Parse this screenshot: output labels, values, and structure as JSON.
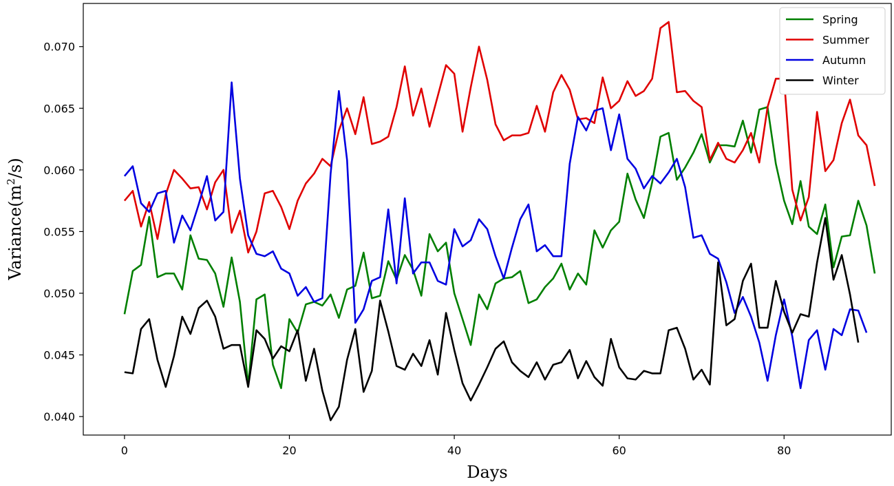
{
  "chart_data": {
    "type": "line",
    "xlabel": "Days",
    "ylabel_prefix": "Variance(m",
    "ylabel_sup": "2",
    "ylabel_suffix": "/s)",
    "xlim": [
      -5,
      93
    ],
    "ylim": [
      0.0385,
      0.0735
    ],
    "xticks": [
      0,
      20,
      40,
      60,
      80
    ],
    "xtick_labels": [
      "0",
      "20",
      "40",
      "60",
      "80"
    ],
    "yticks": [
      0.04,
      0.045,
      0.05,
      0.055,
      0.06,
      0.065,
      0.07
    ],
    "ytick_labels": [
      "0.040",
      "0.045",
      "0.050",
      "0.055",
      "0.060",
      "0.065",
      "0.070"
    ],
    "grid": false,
    "legend_position": "top-right",
    "series": [
      {
        "name": "Spring",
        "color": "#007f00",
        "y": [
          0.0483,
          0.0518,
          0.0523,
          0.0562,
          0.0513,
          0.0516,
          0.0516,
          0.0503,
          0.0547,
          0.0528,
          0.0527,
          0.0516,
          0.0489,
          0.0529,
          0.0493,
          0.0425,
          0.0495,
          0.0499,
          0.0442,
          0.0423,
          0.0479,
          0.0468,
          0.0491,
          0.0493,
          0.049,
          0.0499,
          0.048,
          0.0503,
          0.0506,
          0.0533,
          0.0496,
          0.0498,
          0.0526,
          0.0511,
          0.0531,
          0.0519,
          0.0498,
          0.0548,
          0.0534,
          0.0541,
          0.05,
          0.0479,
          0.0458,
          0.0499,
          0.0487,
          0.0508,
          0.0512,
          0.0513,
          0.0518,
          0.0492,
          0.0495,
          0.0505,
          0.0512,
          0.0524,
          0.0503,
          0.0516,
          0.0507,
          0.0551,
          0.0537,
          0.0551,
          0.0558,
          0.0597,
          0.0576,
          0.0561,
          0.059,
          0.0627,
          0.063,
          0.0592,
          0.0602,
          0.0614,
          0.0629,
          0.0606,
          0.062,
          0.062,
          0.0619,
          0.064,
          0.0614,
          0.0649,
          0.0651,
          0.0605,
          0.0575,
          0.0556,
          0.0591,
          0.0554,
          0.0548,
          0.0572,
          0.0521,
          0.0546,
          0.0547,
          0.0575,
          0.0555,
          0.0516
        ]
      },
      {
        "name": "Summer",
        "color": "#e00000",
        "y": [
          0.0575,
          0.0583,
          0.0554,
          0.0574,
          0.0544,
          0.058,
          0.06,
          0.0593,
          0.0585,
          0.0586,
          0.0568,
          0.059,
          0.06,
          0.0549,
          0.0567,
          0.0533,
          0.055,
          0.0581,
          0.0583,
          0.057,
          0.0552,
          0.0575,
          0.0589,
          0.0597,
          0.0609,
          0.0603,
          0.0632,
          0.065,
          0.0629,
          0.0659,
          0.0621,
          0.0623,
          0.0627,
          0.0651,
          0.0684,
          0.0644,
          0.0666,
          0.0635,
          0.066,
          0.0685,
          0.0678,
          0.0631,
          0.0667,
          0.07,
          0.0673,
          0.0637,
          0.0624,
          0.0628,
          0.0628,
          0.063,
          0.0652,
          0.0631,
          0.0663,
          0.0677,
          0.0665,
          0.0641,
          0.0642,
          0.0638,
          0.0675,
          0.065,
          0.0656,
          0.0672,
          0.066,
          0.0664,
          0.0674,
          0.0715,
          0.072,
          0.0663,
          0.0664,
          0.0656,
          0.0651,
          0.0608,
          0.0622,
          0.0609,
          0.0606,
          0.0616,
          0.063,
          0.0606,
          0.0651,
          0.0674,
          0.0674,
          0.0584,
          0.0559,
          0.0578,
          0.0647,
          0.0599,
          0.0608,
          0.0638,
          0.0657,
          0.0628,
          0.062,
          0.0587
        ]
      },
      {
        "name": "Autumn",
        "color": "#0000e0",
        "y": [
          0.0595,
          0.0603,
          0.0573,
          0.0566,
          0.0581,
          0.0583,
          0.0541,
          0.0563,
          0.0551,
          0.0572,
          0.0595,
          0.0559,
          0.0566,
          0.0671,
          0.0593,
          0.0547,
          0.0532,
          0.053,
          0.0534,
          0.052,
          0.0516,
          0.0498,
          0.0505,
          0.0493,
          0.0496,
          0.0597,
          0.0664,
          0.0608,
          0.0476,
          0.0487,
          0.051,
          0.0513,
          0.0568,
          0.0508,
          0.0577,
          0.0516,
          0.0525,
          0.0525,
          0.051,
          0.0507,
          0.0552,
          0.0538,
          0.0543,
          0.056,
          0.0552,
          0.053,
          0.0512,
          0.0537,
          0.056,
          0.0572,
          0.0534,
          0.0539,
          0.053,
          0.053,
          0.0605,
          0.0643,
          0.0632,
          0.0648,
          0.065,
          0.0616,
          0.0645,
          0.0609,
          0.0601,
          0.0585,
          0.0595,
          0.0589,
          0.0598,
          0.0609,
          0.0586,
          0.0545,
          0.0547,
          0.0532,
          0.0528,
          0.0509,
          0.0484,
          0.0497,
          0.0481,
          0.046,
          0.0429,
          0.0466,
          0.0495,
          0.0465,
          0.0423,
          0.0462,
          0.047,
          0.0438,
          0.0471,
          0.0466,
          0.0487,
          0.0486,
          0.0468
        ]
      },
      {
        "name": "Winter",
        "color": "#000000",
        "y": [
          0.0436,
          0.0435,
          0.0471,
          0.0479,
          0.0446,
          0.0424,
          0.0449,
          0.0481,
          0.0467,
          0.0488,
          0.0494,
          0.0481,
          0.0455,
          0.0458,
          0.0458,
          0.0424,
          0.047,
          0.0463,
          0.0447,
          0.0457,
          0.0453,
          0.047,
          0.0429,
          0.0455,
          0.0421,
          0.0397,
          0.0408,
          0.0446,
          0.0471,
          0.042,
          0.0437,
          0.0494,
          0.0469,
          0.0441,
          0.0438,
          0.0451,
          0.0441,
          0.0462,
          0.0434,
          0.0484,
          0.0454,
          0.0427,
          0.0413,
          0.0426,
          0.044,
          0.0455,
          0.0461,
          0.0444,
          0.0437,
          0.0432,
          0.0444,
          0.043,
          0.0442,
          0.0444,
          0.0454,
          0.0431,
          0.0445,
          0.0432,
          0.0425,
          0.0463,
          0.044,
          0.0431,
          0.043,
          0.0437,
          0.0435,
          0.0435,
          0.047,
          0.0472,
          0.0455,
          0.043,
          0.0438,
          0.0426,
          0.0525,
          0.0474,
          0.0479,
          0.051,
          0.0524,
          0.0472,
          0.0472,
          0.051,
          0.0485,
          0.0468,
          0.0483,
          0.0481,
          0.0525,
          0.0561,
          0.0511,
          0.0531,
          0.0499,
          0.046
        ]
      }
    ]
  }
}
